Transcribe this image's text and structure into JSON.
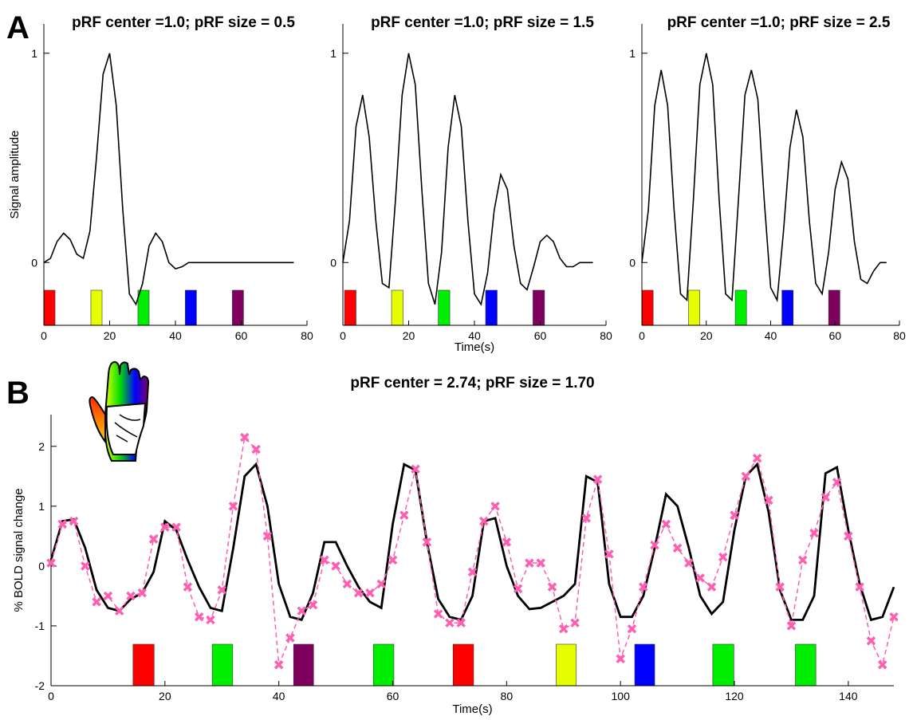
{
  "panel_labels": [
    "A",
    "B"
  ],
  "chart_data": [
    {
      "type": "line",
      "title": "pRF center =1.0; pRF size = 0.5",
      "y_label": "Signal amplitude",
      "x": [
        0,
        2,
        4,
        6,
        8,
        10,
        12,
        14,
        16,
        18,
        20,
        22,
        24,
        26,
        28,
        30,
        32,
        34,
        36,
        38,
        40,
        42,
        44,
        46,
        48,
        50,
        52,
        54,
        56,
        58,
        60,
        62,
        64,
        66,
        68,
        70,
        72,
        74,
        76
      ],
      "series": [
        {
          "color": "#000000",
          "values": [
            0,
            0.02,
            0.1,
            0.14,
            0.11,
            0.04,
            0.02,
            0.15,
            0.5,
            0.9,
            1.0,
            0.75,
            0.25,
            -0.15,
            -0.2,
            -0.1,
            0.08,
            0.14,
            0.1,
            0.0,
            -0.03,
            -0.02,
            0,
            0,
            0,
            0,
            0,
            0,
            0,
            0,
            0,
            0,
            0,
            0,
            0,
            0,
            0,
            0,
            0
          ]
        }
      ],
      "stimuli": [
        {
          "start": 0,
          "end": 3.4,
          "color": "#ff0000"
        },
        {
          "start": 14.3,
          "end": 17.7,
          "color": "#e5ff00"
        },
        {
          "start": 28.6,
          "end": 32,
          "color": "#00ee00"
        },
        {
          "start": 43,
          "end": 46.4,
          "color": "#0000ff"
        },
        {
          "start": 57.3,
          "end": 60.7,
          "color": "#800060"
        }
      ],
      "xlim": [
        0,
        80
      ],
      "ylim": [
        -0.3,
        1.14
      ],
      "xticks": [
        0,
        20,
        40,
        60,
        80
      ],
      "yticks": [
        0,
        1
      ]
    },
    {
      "type": "line",
      "title": "pRF center =1.0; pRF size = 1.5",
      "x_label": "Time(s)",
      "x": [
        0,
        2,
        4,
        6,
        8,
        10,
        12,
        14,
        16,
        18,
        20,
        22,
        24,
        26,
        28,
        30,
        32,
        34,
        36,
        38,
        40,
        42,
        44,
        46,
        48,
        50,
        52,
        54,
        56,
        58,
        60,
        62,
        64,
        66,
        68,
        70,
        72,
        74,
        76
      ],
      "series": [
        {
          "color": "#000000",
          "values": [
            0,
            0.2,
            0.65,
            0.8,
            0.6,
            0.2,
            -0.1,
            -0.12,
            0.3,
            0.8,
            1.0,
            0.85,
            0.35,
            -0.1,
            -0.2,
            0.05,
            0.55,
            0.8,
            0.65,
            0.2,
            -0.15,
            -0.2,
            -0.05,
            0.25,
            0.42,
            0.35,
            0.08,
            -0.1,
            -0.13,
            -0.02,
            0.1,
            0.13,
            0.1,
            0.02,
            -0.02,
            -0.02,
            0,
            0,
            0
          ]
        }
      ],
      "stimuli": [
        {
          "start": 0.5,
          "end": 4,
          "color": "#ff0000"
        },
        {
          "start": 14.8,
          "end": 18.3,
          "color": "#e5ff00"
        },
        {
          "start": 29,
          "end": 32.5,
          "color": "#00ee00"
        },
        {
          "start": 43.4,
          "end": 46.9,
          "color": "#0000ff"
        },
        {
          "start": 57.8,
          "end": 61.3,
          "color": "#800060"
        }
      ],
      "xlim": [
        0,
        80
      ],
      "ylim": [
        -0.3,
        1.14
      ],
      "xticks": [
        0,
        20,
        40,
        60,
        80
      ],
      "yticks": [
        0,
        1
      ]
    },
    {
      "type": "line",
      "title": "pRF center =1.0; pRF size = 2.5",
      "x": [
        0,
        2,
        4,
        6,
        8,
        10,
        12,
        14,
        16,
        18,
        20,
        22,
        24,
        26,
        28,
        30,
        32,
        34,
        36,
        38,
        40,
        42,
        44,
        46,
        48,
        50,
        52,
        54,
        56,
        58,
        60,
        62,
        64,
        66,
        68,
        70,
        72,
        74,
        76
      ],
      "series": [
        {
          "color": "#000000",
          "values": [
            0,
            0.25,
            0.75,
            0.92,
            0.75,
            0.25,
            -0.15,
            -0.18,
            0.3,
            0.85,
            1.0,
            0.85,
            0.3,
            -0.15,
            -0.18,
            0.3,
            0.8,
            0.92,
            0.78,
            0.3,
            -0.12,
            -0.18,
            0.15,
            0.55,
            0.73,
            0.6,
            0.2,
            -0.1,
            -0.15,
            0.05,
            0.35,
            0.48,
            0.4,
            0.1,
            -0.08,
            -0.1,
            -0.04,
            0,
            0
          ]
        }
      ],
      "stimuli": [
        {
          "start": 0,
          "end": 3.5,
          "color": "#ff0000"
        },
        {
          "start": 14.5,
          "end": 18,
          "color": "#e5ff00"
        },
        {
          "start": 29,
          "end": 32.5,
          "color": "#00ee00"
        },
        {
          "start": 43.5,
          "end": 47,
          "color": "#0000ff"
        },
        {
          "start": 58,
          "end": 61.5,
          "color": "#800060"
        }
      ],
      "xlim": [
        0,
        80
      ],
      "ylim": [
        -0.3,
        1.14
      ],
      "xticks": [
        0,
        20,
        40,
        60,
        80
      ],
      "yticks": [
        0,
        1
      ]
    },
    {
      "type": "line",
      "title": "pRF center = 2.74; pRF size = 1.70",
      "x_label": "Time(s)",
      "y_label": "% BOLD signal change",
      "x": [
        0,
        2,
        4,
        6,
        8,
        10,
        12,
        14,
        16,
        18,
        20,
        22,
        24,
        26,
        28,
        30,
        32,
        34,
        36,
        38,
        40,
        42,
        44,
        46,
        48,
        50,
        52,
        54,
        56,
        58,
        60,
        62,
        64,
        66,
        68,
        70,
        72,
        74,
        76,
        78,
        80,
        82,
        84,
        86,
        88,
        90,
        92,
        94,
        96,
        98,
        100,
        102,
        104,
        106,
        108,
        110,
        112,
        114,
        116,
        118,
        120,
        122,
        124,
        126,
        128,
        130,
        132,
        134,
        136,
        138,
        140,
        142,
        144,
        146,
        148
      ],
      "series": [
        {
          "color": "#000000",
          "values": [
            0.1,
            0.75,
            0.78,
            0.3,
            -0.4,
            -0.7,
            -0.75,
            -0.55,
            -0.45,
            -0.1,
            0.75,
            0.6,
            0.1,
            -0.35,
            -0.7,
            -0.75,
            0.3,
            1.5,
            1.7,
            1.0,
            -0.3,
            -0.85,
            -0.9,
            -0.45,
            0.4,
            0.4,
            0.0,
            -0.35,
            -0.6,
            -0.7,
            0.7,
            1.7,
            1.6,
            0.4,
            -0.55,
            -0.85,
            -0.9,
            -0.5,
            0.75,
            0.8,
            0.0,
            -0.5,
            -0.72,
            -0.7,
            -0.6,
            -0.5,
            -0.3,
            1.5,
            1.4,
            -0.3,
            -0.85,
            -0.85,
            -0.5,
            0.3,
            1.2,
            1.0,
            0.3,
            -0.5,
            -0.8,
            -0.6,
            0.6,
            1.5,
            1.7,
            0.9,
            -0.4,
            -0.9,
            -0.9,
            -0.5,
            1.55,
            1.65,
            0.6,
            -0.3,
            -0.9,
            -0.85,
            -0.35
          ]
        },
        {
          "color": "#ff5fb0",
          "values": [
            0.05,
            0.7,
            0.75,
            0.0,
            -0.6,
            -0.5,
            -0.75,
            -0.5,
            -0.45,
            0.45,
            0.65,
            0.65,
            -0.35,
            -0.85,
            -0.9,
            -0.4,
            1.0,
            2.15,
            1.95,
            0.5,
            -1.65,
            -1.2,
            -0.75,
            -0.65,
            0.1,
            0.0,
            -0.3,
            -0.45,
            -0.45,
            -0.3,
            0.1,
            0.85,
            1.62,
            0.4,
            -0.8,
            -0.95,
            -0.95,
            -0.1,
            0.75,
            1.0,
            0.4,
            -0.38,
            0.05,
            0.05,
            -0.35,
            -1.05,
            -0.95,
            0.8,
            1.45,
            0.2,
            -1.55,
            -1.05,
            -0.35,
            0.35,
            0.7,
            0.3,
            0.05,
            -0.2,
            -0.35,
            0.15,
            0.85,
            1.5,
            1.8,
            1.1,
            -0.35,
            -1.0,
            0.1,
            0.55,
            1.15,
            1.4,
            0.5,
            -0.35,
            -1.25,
            -1.65,
            -0.85
          ]
        }
      ],
      "stimuli": [
        {
          "start": 14.4,
          "end": 18.1,
          "color": "#ff0000"
        },
        {
          "start": 28.3,
          "end": 31.9,
          "color": "#00ee00"
        },
        {
          "start": 42.6,
          "end": 46.1,
          "color": "#800060"
        },
        {
          "start": 56.6,
          "end": 60.2,
          "color": "#00ee00"
        },
        {
          "start": 70.6,
          "end": 74.2,
          "color": "#ff0000"
        },
        {
          "start": 88.7,
          "end": 92.2,
          "color": "#e5ff00"
        },
        {
          "start": 102.5,
          "end": 106,
          "color": "#0000ff"
        },
        {
          "start": 116.2,
          "end": 119.9,
          "color": "#00ee00"
        },
        {
          "start": 130.7,
          "end": 134.3,
          "color": "#00ee00"
        }
      ],
      "xlim": [
        0,
        148
      ],
      "ylim": [
        -2,
        2.53
      ],
      "xticks": [
        0,
        20,
        40,
        60,
        80,
        100,
        120,
        140
      ],
      "yticks": [
        -2,
        -1,
        0,
        1,
        2
      ]
    }
  ]
}
